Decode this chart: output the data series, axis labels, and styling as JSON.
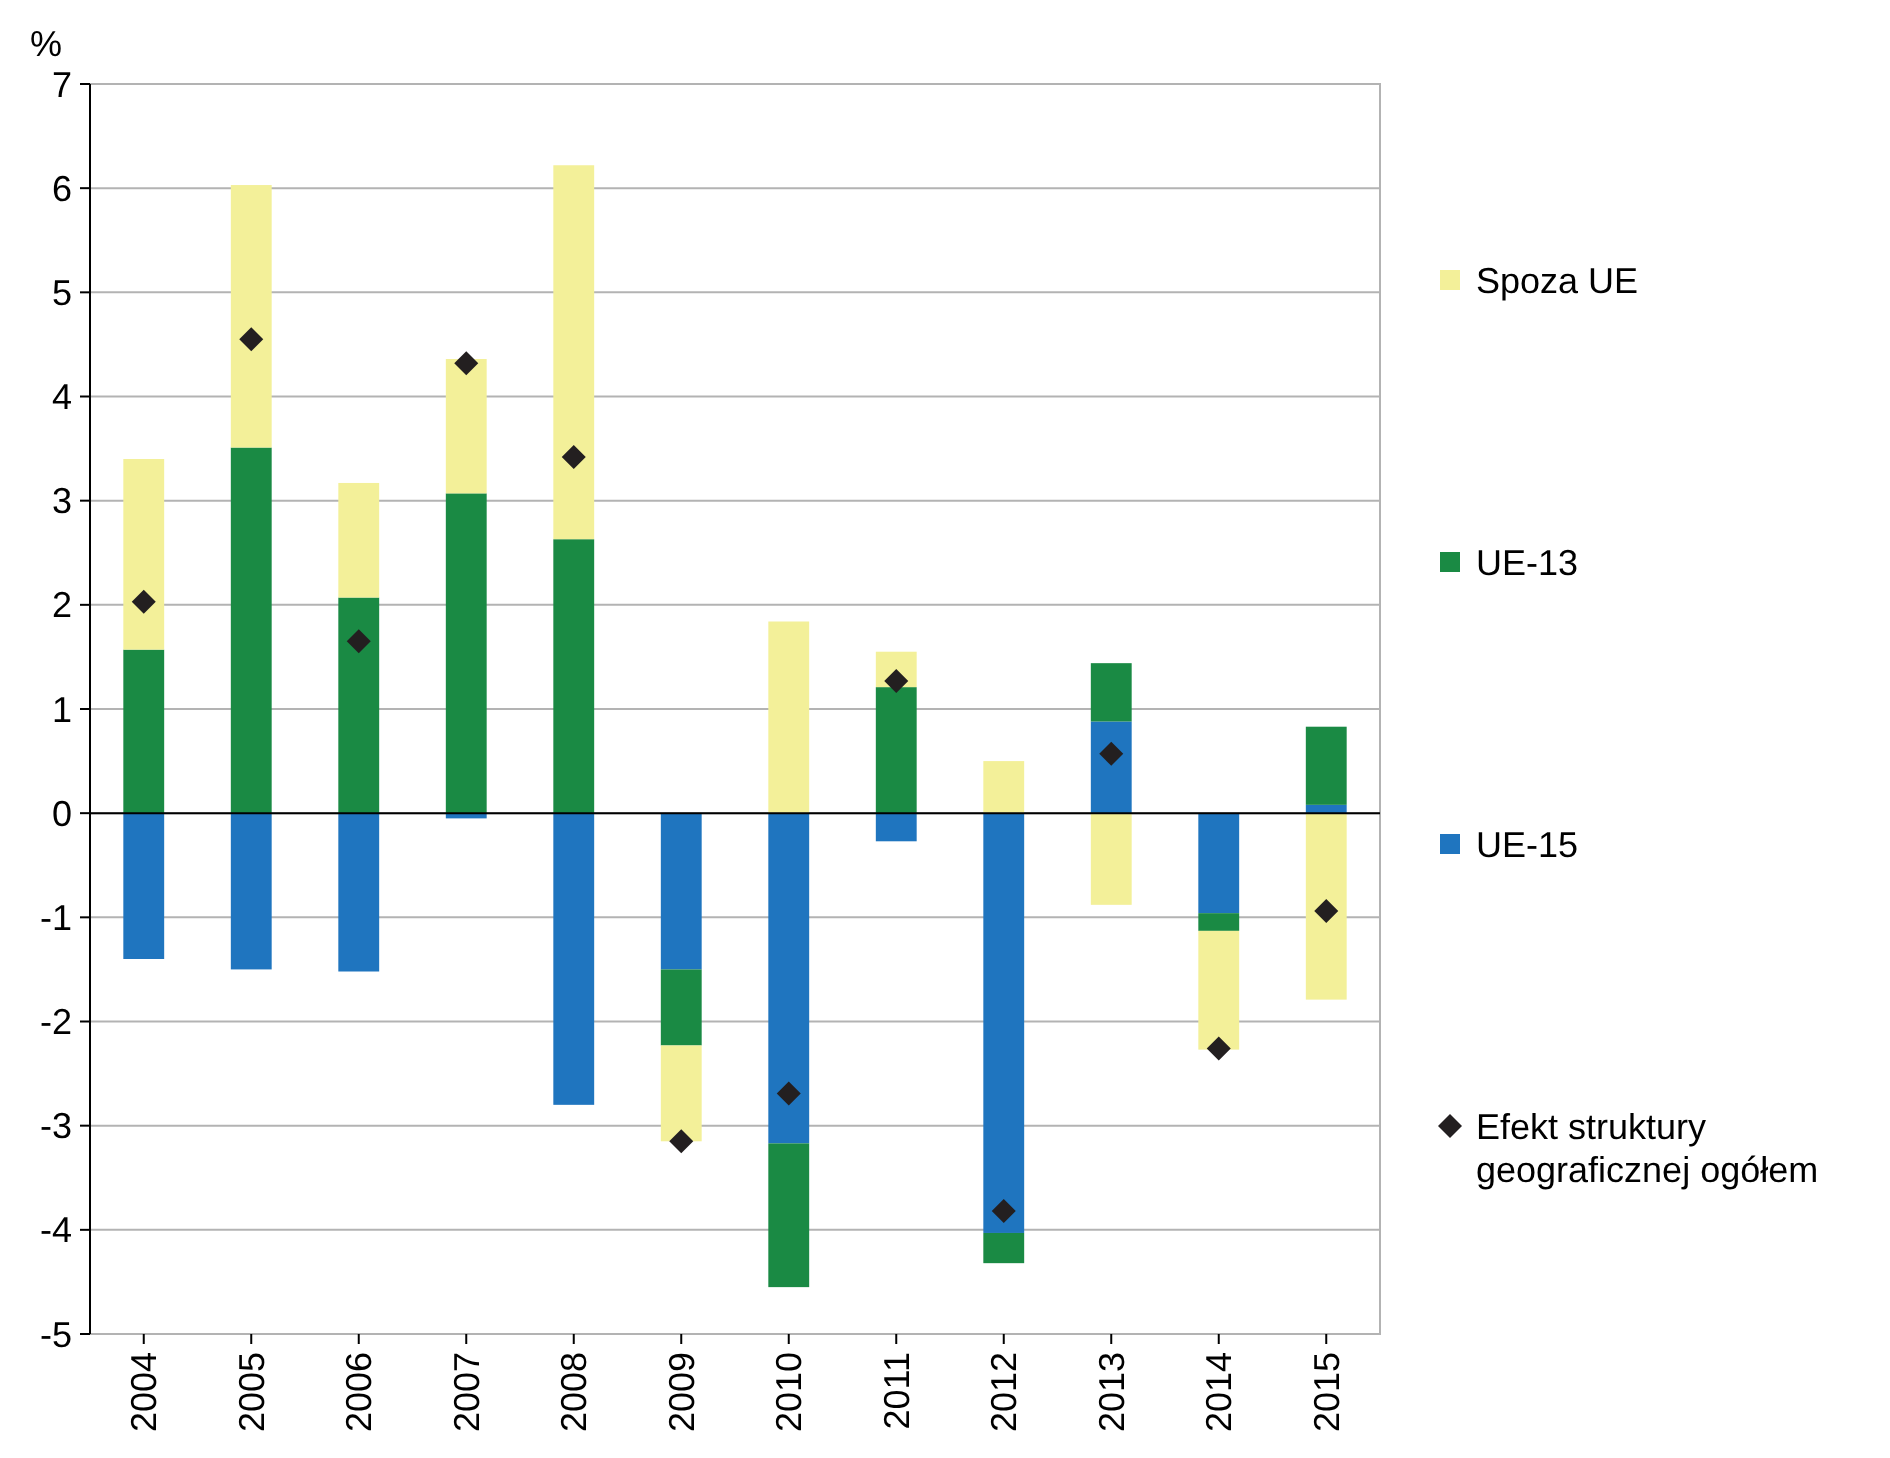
{
  "chart_data": {
    "type": "bar",
    "stacked": true,
    "ylabel": "%",
    "categories": [
      "2004",
      "2005",
      "2006",
      "2007",
      "2008",
      "2009",
      "2010",
      "2011",
      "2012",
      "2013",
      "2014",
      "2015"
    ],
    "series": [
      {
        "name": "UE-15",
        "color": "#1f75bf",
        "values": [
          -1.4,
          -1.5,
          -1.52,
          -0.05,
          -2.8,
          -1.5,
          -3.17,
          -0.27,
          -4.03,
          0.88,
          -0.96,
          0.08
        ]
      },
      {
        "name": "UE-13",
        "color": "#1a8a44",
        "values": [
          1.57,
          3.51,
          2.07,
          3.07,
          2.63,
          -0.73,
          -1.38,
          1.21,
          -0.29,
          0.56,
          -0.17,
          0.75
        ]
      },
      {
        "name": "Spoza UE",
        "color": "#f3f099",
        "values": [
          1.83,
          2.52,
          1.1,
          1.29,
          3.59,
          -0.92,
          1.84,
          0.34,
          0.5,
          -0.88,
          -1.14,
          -1.79
        ]
      },
      {
        "name": "Efekt struktury geograficznej ogółem",
        "type": "scatter",
        "marker": "diamond",
        "color": "#231f20",
        "values": [
          2.03,
          4.55,
          1.65,
          4.32,
          3.42,
          -3.15,
          -2.69,
          1.27,
          -3.82,
          0.57,
          -2.26,
          -0.94
        ]
      }
    ],
    "ylim": [
      -5,
      7
    ],
    "yticks": [
      -5,
      -4,
      -3,
      -2,
      -1,
      0,
      1,
      2,
      3,
      4,
      5,
      6,
      7
    ],
    "grid": "y",
    "legend": "right"
  }
}
